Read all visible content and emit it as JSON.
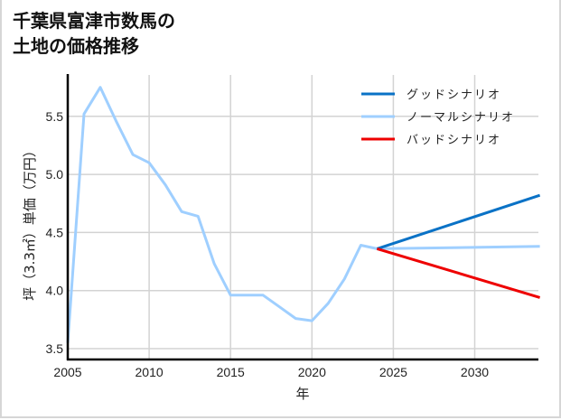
{
  "title": {
    "line1": "千葉県富津市数馬の",
    "line2": "土地の価格推移"
  },
  "colors": {
    "good": "#0a72c6",
    "normal": "#9fcfff",
    "bad": "#ee0000",
    "grid": "#d3d3d3",
    "axis": "#000000"
  },
  "chart_data": {
    "type": "line",
    "title": "千葉県富津市数馬の土地の価格推移",
    "xlabel": "年",
    "ylabel": "坪（3.3㎡）単価（万円）",
    "xlim": [
      2005,
      2034
    ],
    "ylim": [
      3.45,
      5.85
    ],
    "xticks": [
      2005,
      2010,
      2015,
      2020,
      2025,
      2030
    ],
    "yticks": [
      3.5,
      4.0,
      4.5,
      5.0,
      5.5
    ],
    "xtick_labels": [
      "2005",
      "2010",
      "2015",
      "2020",
      "2025",
      "2030"
    ],
    "ytick_labels": [
      "3.5",
      "4.0",
      "4.5",
      "5.0",
      "5.5"
    ],
    "grid": true,
    "legend_position": "upper right",
    "series": [
      {
        "name": "グッドシナリオ",
        "color": "#0a72c6",
        "x": [
          2024,
          2034
        ],
        "values": [
          4.36,
          4.82
        ]
      },
      {
        "name": "ノーマルシナリオ",
        "color": "#9fcfff",
        "x": [
          2005,
          2006,
          2007,
          2008,
          2009,
          2010,
          2011,
          2012,
          2013,
          2014,
          2015,
          2016,
          2017,
          2018,
          2019,
          2020,
          2021,
          2022,
          2023,
          2024,
          2034
        ],
        "values": [
          3.55,
          5.52,
          5.75,
          5.45,
          5.17,
          5.1,
          4.91,
          4.68,
          4.64,
          4.23,
          3.96,
          3.96,
          3.96,
          3.86,
          3.76,
          3.74,
          3.89,
          4.1,
          4.39,
          4.36,
          4.38
        ]
      },
      {
        "name": "バッドシナリオ",
        "color": "#ee0000",
        "x": [
          2024,
          2034
        ],
        "values": [
          4.36,
          3.94
        ]
      }
    ]
  }
}
